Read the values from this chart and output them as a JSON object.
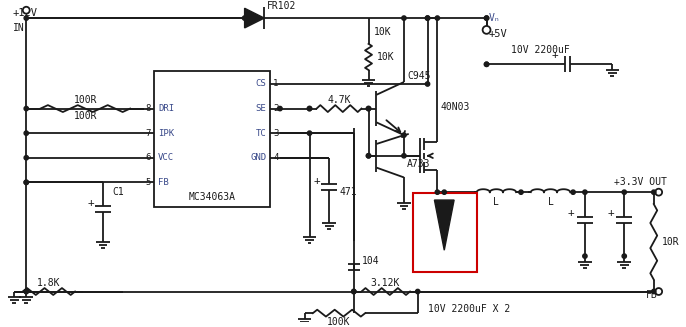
{
  "bg_color": "#ffffff",
  "line_color": "#1a1a1a",
  "lw": 1.3,
  "red_color": "#cc0000",
  "blue_color": "#3a4a8a",
  "labels": {
    "v12": "+12V",
    "in": "IN",
    "fr102": "FR102",
    "r10k": "10K",
    "r100r": "100R",
    "r47k": "4.7K",
    "c945": "C945",
    "a733": "A733",
    "n40n03": "40N03",
    "vin_circ": "Vₙ",
    "v5": "+5V",
    "cap10v": "10V 2200uF",
    "out33": "+3.3V OUT",
    "c471": "471",
    "mc": "MC34063A",
    "r18k": "1.8K",
    "r312k": "3.12K",
    "r100k": "100K",
    "c104": "104",
    "cap_x2": "10V 2200uF X 2",
    "r10r": "10R",
    "c1": "C1",
    "l1": "L",
    "l2": "L",
    "fb": "FB",
    "dri": "DRI",
    "ipk": "IPK",
    "vcc": "VCC",
    "pfb": "FB",
    "cs": "CS",
    "se": "SE",
    "tc": "TC",
    "gnd": "GND",
    "p8": "8",
    "p7": "7",
    "p6": "6",
    "p5": "5",
    "p1": "1",
    "p2": "2",
    "p3": "3",
    "p4": "4"
  }
}
